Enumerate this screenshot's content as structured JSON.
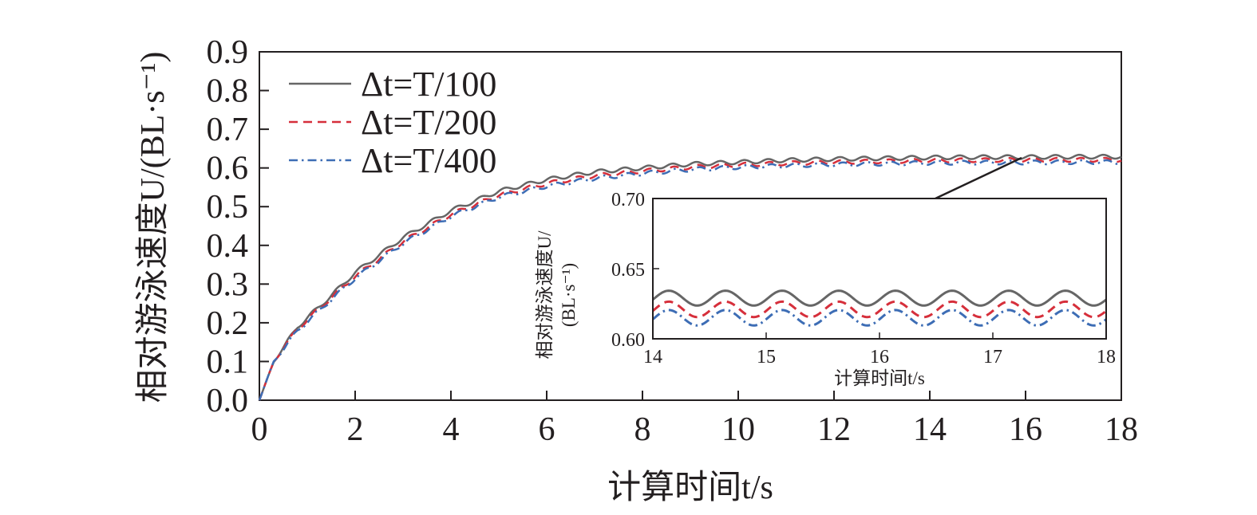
{
  "chart_data": {
    "type": "line",
    "main": {
      "xlabel": "计算时间t/s",
      "ylabel": "相对游泳速度U/(BL·s⁻¹)",
      "xlim": [
        0,
        18
      ],
      "ylim": [
        0,
        0.9
      ],
      "xticks": [
        "0",
        "2",
        "4",
        "6",
        "8",
        "10",
        "12",
        "14",
        "16",
        "18"
      ],
      "yticks": [
        "0.0",
        "0.1",
        "0.2",
        "0.3",
        "0.4",
        "0.5",
        "0.6",
        "0.7",
        "0.8",
        "0.9"
      ],
      "legend_position": "top-left",
      "x": [
        0,
        0.3,
        0.8,
        1.5,
        2.0,
        3.0,
        4.0,
        5.0,
        6.0,
        7.0,
        8.0,
        9.0,
        10.0,
        11.0,
        12.0,
        13.0,
        14.0,
        15.0,
        16.0,
        17.0,
        18.0
      ],
      "series": [
        {
          "name": "Δt=T/100",
          "color": "#666666",
          "dash": "solid",
          "values": [
            0,
            0.1,
            0.19,
            0.27,
            0.33,
            0.42,
            0.49,
            0.54,
            0.57,
            0.59,
            0.6,
            0.61,
            0.615,
            0.62,
            0.623,
            0.625,
            0.627,
            0.628,
            0.628,
            0.629,
            0.629
          ]
        },
        {
          "name": "Δt=T/200",
          "color": "#d62f3b",
          "dash": "dashed",
          "values": [
            0,
            0.1,
            0.185,
            0.265,
            0.32,
            0.41,
            0.48,
            0.53,
            0.56,
            0.58,
            0.592,
            0.602,
            0.608,
            0.612,
            0.615,
            0.617,
            0.619,
            0.62,
            0.621,
            0.621,
            0.621
          ]
        },
        {
          "name": "Δt=T/400",
          "color": "#3d6db5",
          "dash": "dashdot",
          "values": [
            0,
            0.1,
            0.18,
            0.26,
            0.315,
            0.405,
            0.475,
            0.525,
            0.553,
            0.573,
            0.586,
            0.596,
            0.602,
            0.606,
            0.609,
            0.611,
            0.613,
            0.614,
            0.614,
            0.615,
            0.615
          ]
        }
      ],
      "oscillation_amplitude": 0.005,
      "oscillation_period": 0.5
    },
    "inset": {
      "xlabel": "计算时间t/s",
      "ylabel_line1": "相对游泳速度U/",
      "ylabel_line2": "(BL·s⁻¹)",
      "xlim": [
        14,
        18
      ],
      "ylim": [
        0.6,
        0.7
      ],
      "xticks": [
        "14",
        "15",
        "16",
        "17",
        "18"
      ],
      "yticks": [
        "0.60",
        "0.65",
        "0.70"
      ],
      "zoom_point": [
        16,
        0.63
      ],
      "series": [
        {
          "name": "Δt=T/100",
          "mean": 0.629,
          "amplitude": 0.0053,
          "period": 0.5
        },
        {
          "name": "Δt=T/200",
          "mean": 0.621,
          "amplitude": 0.0055,
          "period": 0.5
        },
        {
          "name": "Δt=T/400",
          "mean": 0.615,
          "amplitude": 0.0055,
          "period": 0.5
        }
      ]
    }
  }
}
